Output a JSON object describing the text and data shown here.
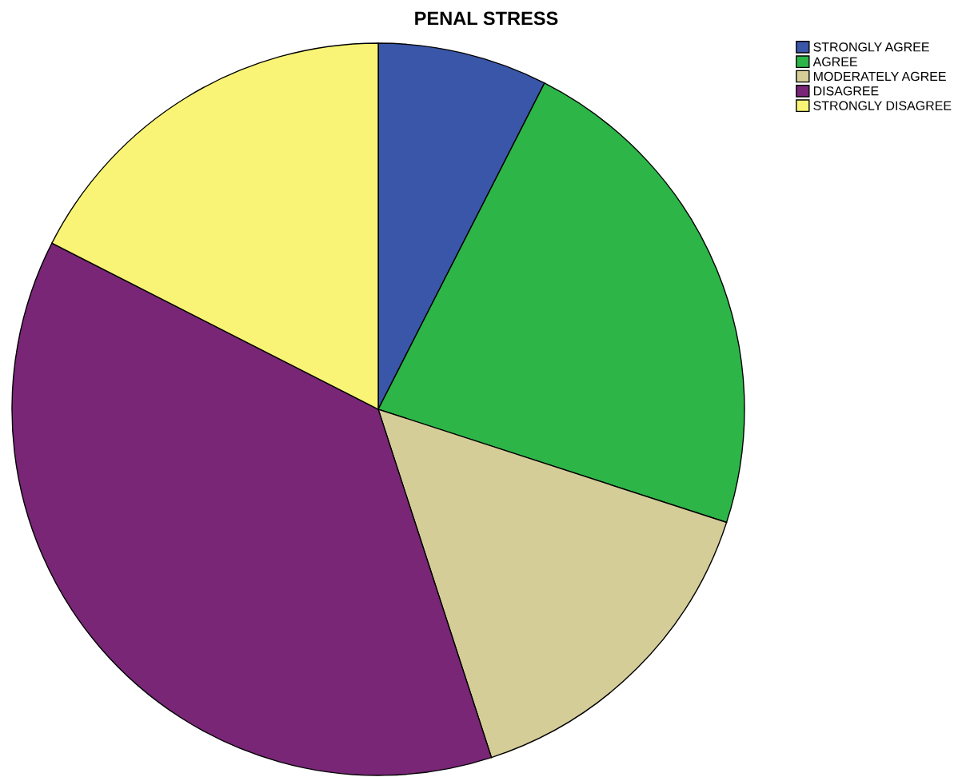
{
  "chart_data": {
    "type": "pie",
    "title": "PENAL STRESS",
    "categories": [
      "STRONGLY AGREE",
      "AGREE",
      "MODERATELY AGREE",
      "DISAGREE",
      "STRONGLY DISAGREE"
    ],
    "values": [
      7.5,
      22.5,
      15,
      37.5,
      17.5
    ],
    "colors": [
      "#3a56a8",
      "#2db548",
      "#d4cd98",
      "#792677",
      "#f9f475"
    ],
    "legend": "top right"
  }
}
